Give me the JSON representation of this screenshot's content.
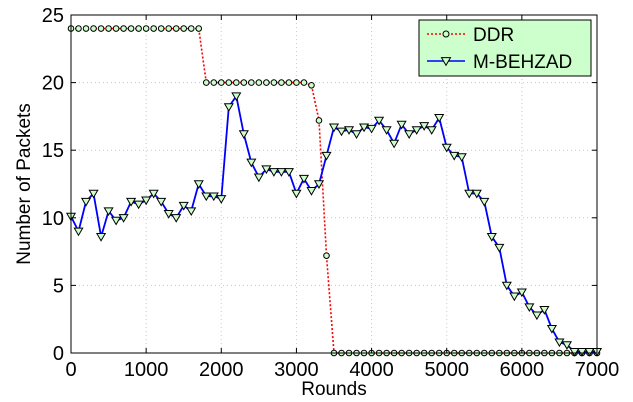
{
  "chart_data": {
    "type": "line",
    "title": "",
    "xlabel": "Rounds",
    "ylabel": "Number of Packets",
    "xlim": [
      0,
      7000
    ],
    "ylim": [
      0,
      25
    ],
    "xticks": [
      "0",
      "1000",
      "2000",
      "3000",
      "4000",
      "5000",
      "6000",
      "7000"
    ],
    "yticks": [
      "0",
      "5",
      "10",
      "15",
      "20",
      "25"
    ],
    "grid": true,
    "legend_position": "top-right",
    "legend_background": "#ccffcc",
    "series": [
      {
        "name": "DDR",
        "color": "#ff0000",
        "line_style": "dotted",
        "marker": "circle",
        "marker_fill": "#ccffcc",
        "marker_edge": "#000000",
        "x": [
          0,
          100,
          200,
          300,
          400,
          500,
          600,
          700,
          800,
          900,
          1000,
          1100,
          1200,
          1300,
          1400,
          1500,
          1600,
          1700,
          1800,
          1900,
          2000,
          2100,
          2200,
          2300,
          2400,
          2500,
          2600,
          2700,
          2800,
          2900,
          3000,
          3100,
          3200,
          3300,
          3400,
          3500,
          3600,
          3700,
          3800,
          3900,
          4000,
          4100,
          4200,
          4300,
          4400,
          4500,
          4600,
          4700,
          4800,
          4900,
          5000,
          5100,
          5200,
          5300,
          5400,
          5500,
          5600,
          5700,
          5800,
          5900,
          6000,
          6100,
          6200,
          6300,
          6400,
          6500,
          6600,
          6700,
          6800,
          6900,
          7000
        ],
        "y": [
          24,
          24,
          24,
          24,
          24,
          24,
          24,
          24,
          24,
          24,
          24,
          24,
          24,
          24,
          24,
          24,
          24,
          24,
          20,
          20,
          20,
          20,
          20,
          20,
          20,
          20,
          20,
          20,
          20,
          20,
          20,
          20,
          19.8,
          17.2,
          7.2,
          0,
          0,
          0,
          0,
          0,
          0,
          0,
          0,
          0,
          0,
          0,
          0,
          0,
          0,
          0,
          0,
          0,
          0,
          0,
          0,
          0,
          0,
          0,
          0,
          0,
          0,
          0,
          0,
          0,
          0,
          0,
          0,
          0,
          0,
          0,
          0
        ]
      },
      {
        "name": "M-BEHZAD",
        "color": "#0000ff",
        "line_style": "solid",
        "marker": "triangle-down",
        "marker_fill": "#ccffcc",
        "marker_edge": "#000000",
        "x": [
          0,
          100,
          200,
          300,
          400,
          500,
          600,
          700,
          800,
          900,
          1000,
          1100,
          1200,
          1300,
          1400,
          1500,
          1600,
          1700,
          1800,
          1900,
          2000,
          2100,
          2200,
          2300,
          2400,
          2500,
          2600,
          2700,
          2800,
          2900,
          3000,
          3100,
          3200,
          3300,
          3400,
          3500,
          3600,
          3700,
          3800,
          3900,
          4000,
          4100,
          4200,
          4300,
          4400,
          4500,
          4600,
          4700,
          4800,
          4900,
          5000,
          5100,
          5200,
          5300,
          5400,
          5500,
          5600,
          5700,
          5800,
          5900,
          6000,
          6100,
          6200,
          6300,
          6400,
          6500,
          6600,
          6700,
          6800,
          6900,
          7000
        ],
        "y": [
          10.1,
          9,
          11.2,
          11.8,
          8.6,
          10.5,
          9.8,
          10,
          11.2,
          11,
          11.3,
          11.8,
          11.2,
          10.3,
          10,
          10.9,
          10.5,
          12.5,
          11.6,
          11.6,
          11.4,
          18.2,
          19,
          16.2,
          14.1,
          13,
          13.6,
          13.4,
          13.4,
          13.4,
          11.8,
          12.9,
          12,
          12.5,
          14.6,
          16.7,
          16.4,
          16.5,
          16.2,
          16.7,
          16.6,
          17.2,
          16.5,
          15.5,
          16.9,
          16.2,
          16.5,
          16.8,
          16.5,
          17.4,
          15.2,
          14.6,
          14.5,
          11.8,
          11.8,
          11.2,
          8.6,
          7.8,
          5,
          4.2,
          4.5,
          3.4,
          2.8,
          3.2,
          1.8,
          0.8,
          0.6,
          0.1,
          0.1,
          0.1,
          0.1
        ]
      }
    ]
  }
}
